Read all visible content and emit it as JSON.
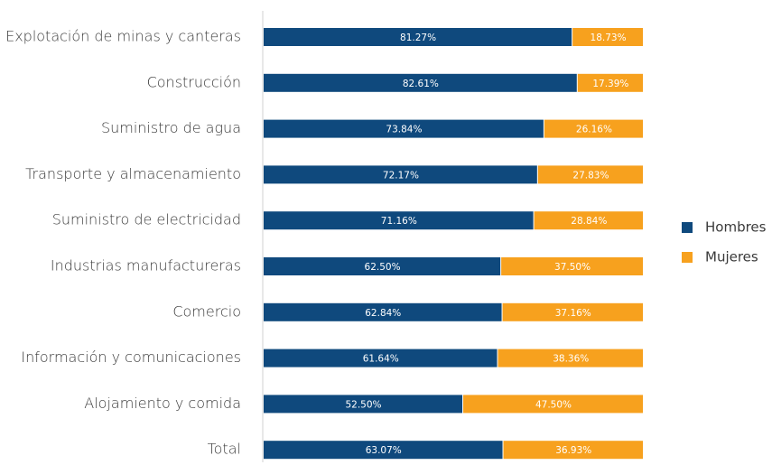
{
  "chart_data": {
    "type": "stacked_bar_horizontal",
    "categories": [
      "Explotación de minas y canteras",
      "Construcción",
      "Suministro de agua",
      "Transporte y almacenamiento",
      "Suministro de electricidad",
      "Industrias manufactureras",
      "Comercio",
      "Información y comunicaciones",
      "Alojamiento y comida",
      "Total"
    ],
    "series": [
      {
        "name": "Hombres",
        "color": "#0f497d",
        "values": [
          81.27,
          82.61,
          73.84,
          72.17,
          71.16,
          62.5,
          62.84,
          61.64,
          52.5,
          63.07
        ],
        "value_labels": [
          "81.27%",
          "82.61%",
          "73.84%",
          "72.17%",
          "71.16%",
          "62.50%",
          "62.84%",
          "61.64%",
          "52.50%",
          "63.07%"
        ]
      },
      {
        "name": "Mujeres",
        "color": "#f7a11e",
        "values": [
          18.73,
          17.39,
          26.16,
          27.83,
          28.84,
          37.5,
          37.16,
          38.36,
          47.5,
          36.93
        ],
        "value_labels": [
          "18.73%",
          "17.39%",
          "26.16%",
          "27.83%",
          "28.84%",
          "37.50%",
          "37.16%",
          "38.36%",
          "47.50%",
          "36.93%"
        ]
      }
    ],
    "xlim": [
      0,
      100
    ],
    "legend": "right"
  }
}
